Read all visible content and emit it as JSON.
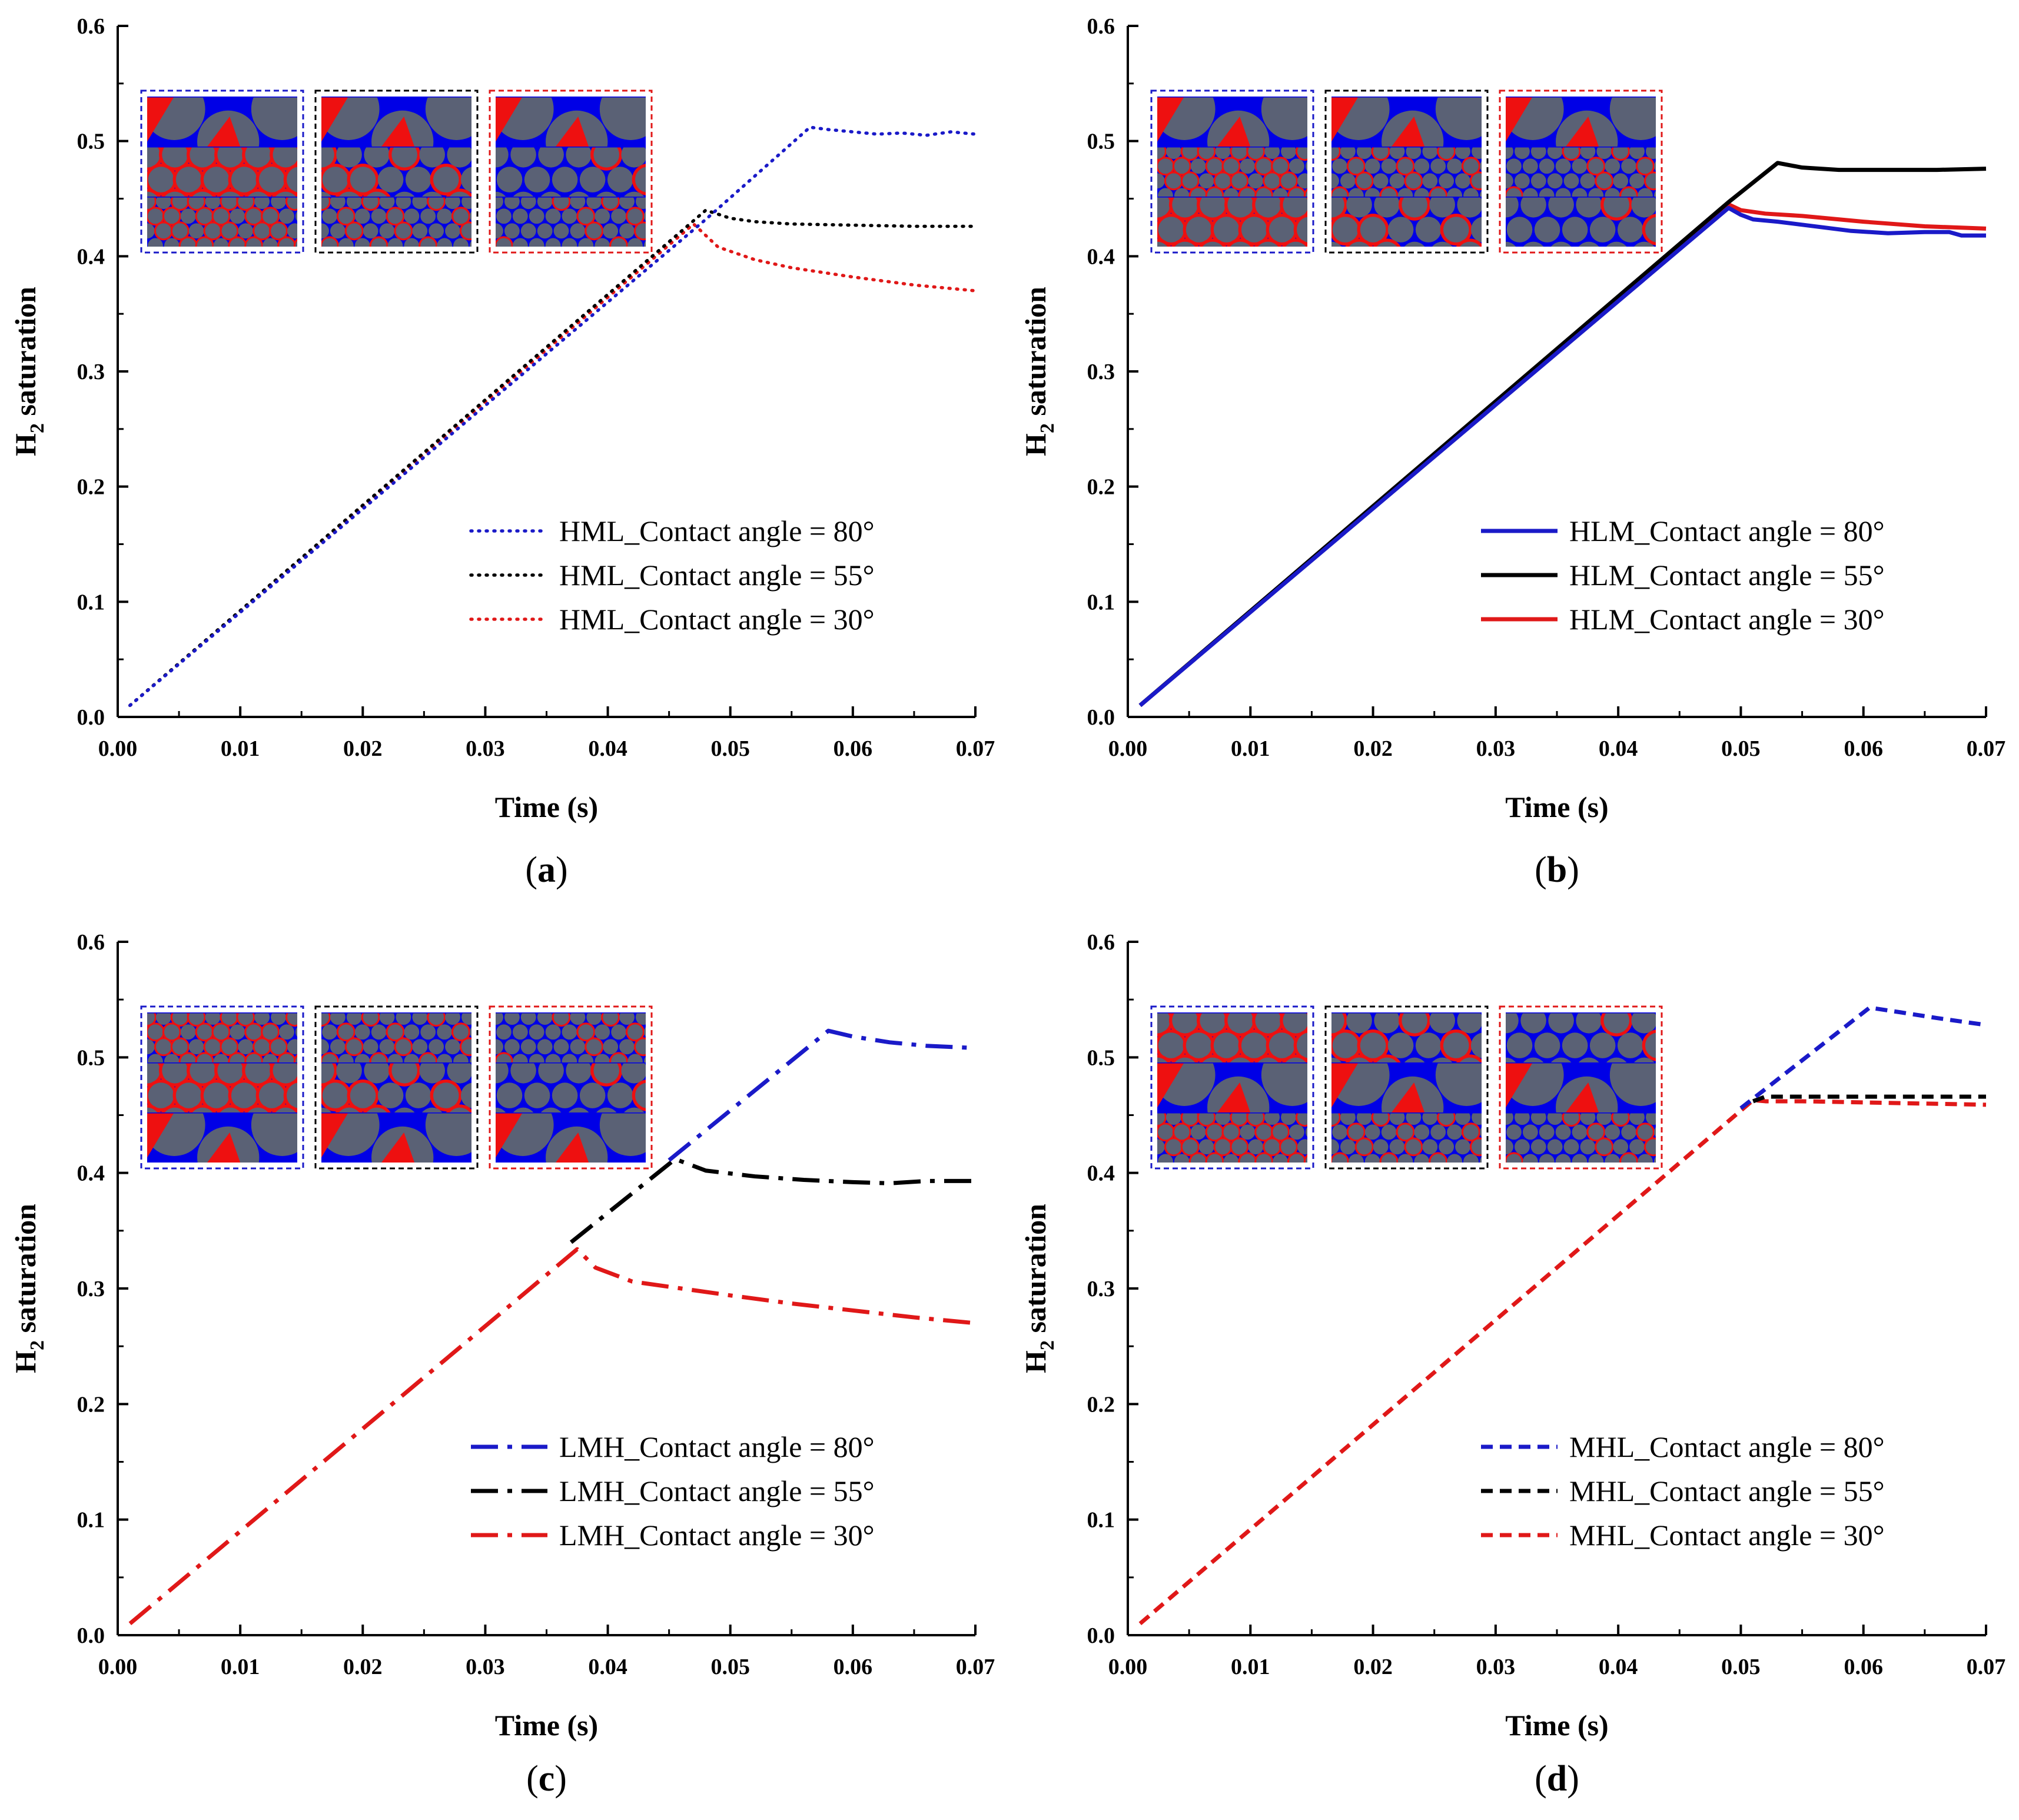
{
  "figure": {
    "inset_colors": {
      "grain": "#5a6175",
      "water": "#0000e6",
      "h2": "#ee1010"
    },
    "grid": false
  },
  "chart_data": [
    {
      "panel": "(a)",
      "panel_letter": "a",
      "type": "line",
      "line_style": "dotted",
      "title": "",
      "xlabel": "Time (s)",
      "ylabel_main": "H",
      "ylabel_sub": "2",
      "ylabel_rest": " saturation",
      "xlim": [
        0,
        0.07
      ],
      "ylim": [
        0,
        0.6
      ],
      "xticks": [
        "0.00",
        "0.01",
        "0.02",
        "0.03",
        "0.04",
        "0.05",
        "0.06",
        "0.07"
      ],
      "yticks": [
        "0.0",
        "0.1",
        "0.2",
        "0.3",
        "0.4",
        "0.5",
        "0.6"
      ],
      "legend_position": "bottom-right",
      "series": [
        {
          "name": "HML_Contact angle = 80°",
          "color": "#1a1ac8",
          "x": [
            0.001,
            0.048,
            0.0565,
            0.058,
            0.06,
            0.062,
            0.064,
            0.066,
            0.068,
            0.07
          ],
          "y": [
            0.01,
            0.432,
            0.512,
            0.51,
            0.508,
            0.506,
            0.507,
            0.505,
            0.508,
            0.506
          ]
        },
        {
          "name": "HML_Contact angle = 55°",
          "color": "#000000",
          "x": [
            0.001,
            0.048,
            0.05,
            0.052,
            0.055,
            0.06,
            0.065,
            0.07
          ],
          "y": [
            0.01,
            0.44,
            0.433,
            0.43,
            0.428,
            0.427,
            0.426,
            0.426
          ]
        },
        {
          "name": "HML_Contact angle = 30°",
          "color": "#e01818",
          "x": [
            0.001,
            0.047,
            0.049,
            0.052,
            0.055,
            0.06,
            0.065,
            0.07
          ],
          "y": [
            0.01,
            0.428,
            0.408,
            0.397,
            0.39,
            0.382,
            0.375,
            0.37
          ]
        }
      ],
      "insets": [
        {
          "frame": "blue",
          "frame_color": "#1a1ac8",
          "layers": [
            "H",
            "M",
            "L"
          ]
        },
        {
          "frame": "black",
          "frame_color": "#000000",
          "layers": [
            "H",
            "M",
            "L"
          ]
        },
        {
          "frame": "red",
          "frame_color": "#e01818",
          "layers": [
            "H",
            "M",
            "L"
          ]
        }
      ]
    },
    {
      "panel": "(b)",
      "panel_letter": "b",
      "type": "line",
      "line_style": "solid",
      "title": "",
      "xlabel": "Time (s)",
      "ylabel_main": "H",
      "ylabel_sub": "2",
      "ylabel_rest": " saturation",
      "xlim": [
        0,
        0.07
      ],
      "ylim": [
        0,
        0.6
      ],
      "xticks": [
        "0.00",
        "0.01",
        "0.02",
        "0.03",
        "0.04",
        "0.05",
        "0.06",
        "0.07"
      ],
      "yticks": [
        "0.0",
        "0.1",
        "0.2",
        "0.3",
        "0.4",
        "0.5",
        "0.6"
      ],
      "legend_position": "bottom-right",
      "series": [
        {
          "name": "HLM_Contact angle = 80°",
          "color": "#1a1ac8",
          "x": [
            0.001,
            0.049,
            0.05,
            0.051,
            0.053,
            0.056,
            0.059,
            0.062,
            0.065,
            0.067,
            0.068,
            0.07
          ],
          "y": [
            0.01,
            0.442,
            0.436,
            0.432,
            0.43,
            0.426,
            0.422,
            0.42,
            0.421,
            0.421,
            0.418,
            0.418
          ]
        },
        {
          "name": "HLM_Contact angle = 55°",
          "color": "#000000",
          "x": [
            0.001,
            0.049,
            0.053,
            0.055,
            0.058,
            0.062,
            0.066,
            0.07
          ],
          "y": [
            0.01,
            0.447,
            0.481,
            0.477,
            0.475,
            0.475,
            0.475,
            0.476
          ]
        },
        {
          "name": "HLM_Contact angle = 30°",
          "color": "#e01818",
          "x": [
            0.001,
            0.049,
            0.05,
            0.052,
            0.055,
            0.06,
            0.065,
            0.07
          ],
          "y": [
            0.01,
            0.445,
            0.44,
            0.437,
            0.435,
            0.43,
            0.426,
            0.424
          ]
        }
      ],
      "insets": [
        {
          "frame": "blue",
          "frame_color": "#1a1ac8",
          "layers": [
            "H",
            "L",
            "M"
          ]
        },
        {
          "frame": "black",
          "frame_color": "#000000",
          "layers": [
            "H",
            "L",
            "M"
          ]
        },
        {
          "frame": "red",
          "frame_color": "#e01818",
          "layers": [
            "H",
            "L",
            "M"
          ]
        }
      ]
    },
    {
      "panel": "(c)",
      "panel_letter": "c",
      "type": "line",
      "line_style": "dashdot",
      "title": "",
      "xlabel": "Time (s)",
      "ylabel_main": "H",
      "ylabel_sub": "2",
      "ylabel_rest": " saturation",
      "xlim": [
        0,
        0.07
      ],
      "ylim": [
        0,
        0.6
      ],
      "xticks": [
        "0.00",
        "0.01",
        "0.02",
        "0.03",
        "0.04",
        "0.05",
        "0.06",
        "0.07"
      ],
      "yticks": [
        "0.0",
        "0.1",
        "0.2",
        "0.3",
        "0.4",
        "0.5",
        "0.6"
      ],
      "legend_position": "bottom-right",
      "series": [
        {
          "name": "LMH_Contact angle = 80°",
          "color": "#1a1ac8",
          "x": [
            0.045,
            0.058,
            0.06,
            0.063,
            0.066,
            0.07
          ],
          "y": [
            0.411,
            0.523,
            0.518,
            0.513,
            0.51,
            0.508
          ]
        },
        {
          "name": "LMH_Contact angle = 55°",
          "color": "#000000",
          "x": [
            0.037,
            0.0455,
            0.048,
            0.052,
            0.056,
            0.06,
            0.063,
            0.066,
            0.07
          ],
          "y": [
            0.34,
            0.412,
            0.402,
            0.397,
            0.394,
            0.392,
            0.391,
            0.393,
            0.393
          ]
        },
        {
          "name": "LMH_Contact angle = 30°",
          "color": "#e01818",
          "x": [
            0.001,
            0.0375,
            0.039,
            0.042,
            0.046,
            0.05,
            0.055,
            0.06,
            0.065,
            0.07
          ],
          "y": [
            0.01,
            0.334,
            0.318,
            0.306,
            0.3,
            0.294,
            0.287,
            0.281,
            0.275,
            0.27
          ]
        }
      ],
      "insets": [
        {
          "frame": "blue",
          "frame_color": "#1a1ac8",
          "layers": [
            "L",
            "M",
            "H"
          ]
        },
        {
          "frame": "black",
          "frame_color": "#000000",
          "layers": [
            "L",
            "M",
            "H"
          ]
        },
        {
          "frame": "red",
          "frame_color": "#e01818",
          "layers": [
            "L",
            "M",
            "H"
          ]
        }
      ]
    },
    {
      "panel": "(d)",
      "panel_letter": "d",
      "type": "line",
      "line_style": "dashed",
      "title": "",
      "xlabel": "Time (s)",
      "ylabel_main": "H",
      "ylabel_sub": "2",
      "ylabel_rest": " saturation",
      "xlim": [
        0,
        0.07
      ],
      "ylim": [
        0,
        0.6
      ],
      "xticks": [
        "0.00",
        "0.01",
        "0.02",
        "0.03",
        "0.04",
        "0.05",
        "0.06",
        "0.07"
      ],
      "yticks": [
        "0.0",
        "0.1",
        "0.2",
        "0.3",
        "0.4",
        "0.5",
        "0.6"
      ],
      "legend_position": "bottom-right",
      "series": [
        {
          "name": "MHL_Contact angle = 80°",
          "color": "#1a1ac8",
          "x": [
            0.05,
            0.0605,
            0.063,
            0.066,
            0.07
          ],
          "y": [
            0.456,
            0.543,
            0.539,
            0.534,
            0.528
          ]
        },
        {
          "name": "MHL_Contact angle = 55°",
          "color": "#000000",
          "x": [
            0.051,
            0.052,
            0.055,
            0.06,
            0.065,
            0.07
          ],
          "y": [
            0.462,
            0.466,
            0.466,
            0.466,
            0.466,
            0.466
          ]
        },
        {
          "name": "MHL_Contact angle = 30°",
          "color": "#e01818",
          "x": [
            0.001,
            0.051,
            0.052,
            0.055,
            0.06,
            0.065,
            0.07
          ],
          "y": [
            0.01,
            0.463,
            0.462,
            0.462,
            0.461,
            0.46,
            0.459
          ]
        }
      ],
      "insets": [
        {
          "frame": "blue",
          "frame_color": "#1a1ac8",
          "layers": [
            "M",
            "H",
            "L"
          ]
        },
        {
          "frame": "black",
          "frame_color": "#000000",
          "layers": [
            "M",
            "H",
            "L"
          ]
        },
        {
          "frame": "red",
          "frame_color": "#e01818",
          "layers": [
            "M",
            "H",
            "L"
          ]
        }
      ]
    }
  ]
}
